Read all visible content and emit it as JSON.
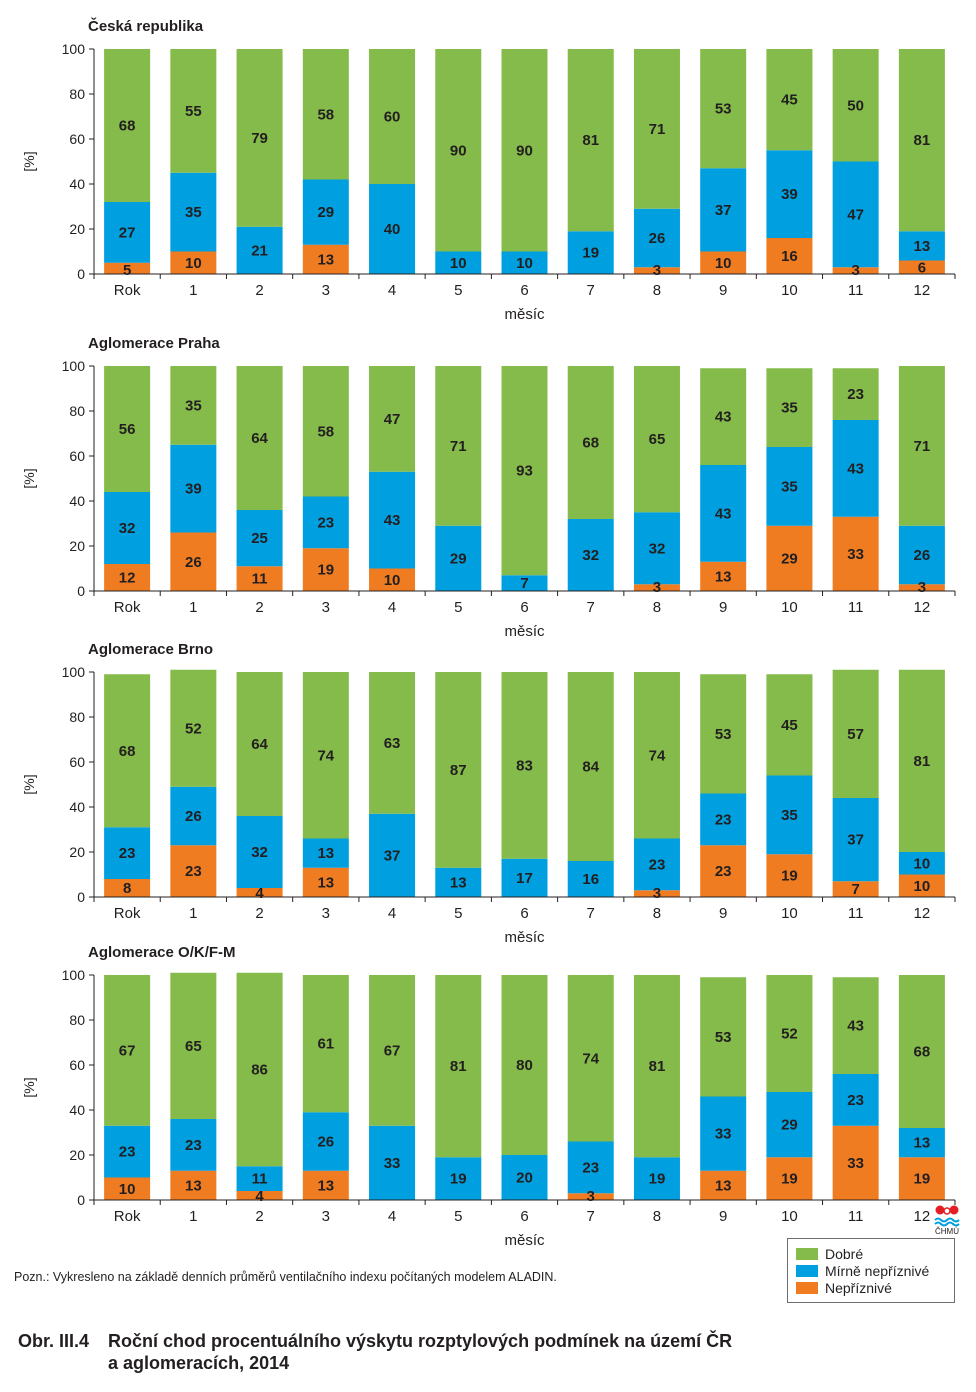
{
  "legend": {
    "items": [
      {
        "label": "Dobré",
        "color": "#84bb4a"
      },
      {
        "label": "Mírně nepříznivé",
        "color": "#009fdf"
      },
      {
        "label": "Nepříznivé",
        "color": "#f07c22"
      }
    ]
  },
  "note": "Pozn.: Vykresleno na základě denních průměrů ventilačního indexu počítaných modelem ALADIN.",
  "caption": {
    "number": "Obr. III.4",
    "line1": "Roční chod procentuálního výskytu rozptylových podmínek na území ČR",
    "line2": "a aglomeracích, 2014"
  },
  "logo": {
    "text": "ČHMÚ",
    "icon": "chmu-logo-icon"
  },
  "chart_data": [
    {
      "type": "bar",
      "title": "Česká republika",
      "ylabel": "[%]",
      "xlabel": "měsíc",
      "ylim": [
        0,
        100
      ],
      "yticks": [
        0,
        20,
        40,
        60,
        80,
        100
      ],
      "grid": false,
      "categories": [
        "Rok",
        "1",
        "2",
        "3",
        "4",
        "5",
        "6",
        "7",
        "8",
        "9",
        "10",
        "11",
        "12"
      ],
      "series": [
        {
          "name": "Nepříznivé",
          "values": [
            5,
            10,
            0,
            13,
            0,
            0,
            0,
            0,
            3,
            10,
            16,
            3,
            6
          ]
        },
        {
          "name": "Mírně nepříznivé",
          "values": [
            27,
            35,
            21,
            29,
            40,
            10,
            10,
            19,
            26,
            37,
            39,
            47,
            13
          ]
        },
        {
          "name": "Dobré",
          "values": [
            68,
            55,
            79,
            58,
            60,
            90,
            90,
            81,
            71,
            53,
            45,
            50,
            81
          ]
        }
      ]
    },
    {
      "type": "bar",
      "title": "Aglomerace Praha",
      "ylabel": "[%]",
      "xlabel": "měsíc",
      "ylim": [
        0,
        100
      ],
      "yticks": [
        0,
        20,
        40,
        60,
        80,
        100
      ],
      "grid": false,
      "categories": [
        "Rok",
        "1",
        "2",
        "3",
        "4",
        "5",
        "6",
        "7",
        "8",
        "9",
        "10",
        "11",
        "12"
      ],
      "series": [
        {
          "name": "Nepříznivé",
          "values": [
            12,
            26,
            11,
            19,
            10,
            0,
            0,
            0,
            3,
            13,
            29,
            33,
            3
          ]
        },
        {
          "name": "Mírně nepříznivé",
          "values": [
            32,
            39,
            25,
            23,
            43,
            29,
            7,
            32,
            32,
            43,
            35,
            43,
            26
          ]
        },
        {
          "name": "Dobré",
          "values": [
            56,
            35,
            64,
            58,
            47,
            71,
            93,
            68,
            65,
            43,
            35,
            23,
            71
          ]
        }
      ]
    },
    {
      "type": "bar",
      "title": "Aglomerace Brno",
      "ylabel": "[%]",
      "xlabel": "měsíc",
      "ylim": [
        0,
        100
      ],
      "yticks": [
        0,
        20,
        40,
        60,
        80,
        100
      ],
      "grid": false,
      "categories": [
        "Rok",
        "1",
        "2",
        "3",
        "4",
        "5",
        "6",
        "7",
        "8",
        "9",
        "10",
        "11",
        "12"
      ],
      "series": [
        {
          "name": "Nepříznivé",
          "values": [
            8,
            23,
            4,
            13,
            0,
            0,
            0,
            0,
            3,
            23,
            19,
            7,
            10
          ]
        },
        {
          "name": "Mírně nepříznivé",
          "values": [
            23,
            26,
            32,
            13,
            37,
            13,
            17,
            16,
            23,
            23,
            35,
            37,
            10
          ]
        },
        {
          "name": "Dobré",
          "values": [
            68,
            52,
            64,
            74,
            63,
            87,
            83,
            84,
            74,
            53,
            45,
            57,
            81
          ]
        }
      ]
    },
    {
      "type": "bar",
      "title": "Aglomerace O/K/F-M",
      "ylabel": "[%]",
      "xlabel": "měsíc",
      "ylim": [
        0,
        100
      ],
      "yticks": [
        0,
        20,
        40,
        60,
        80,
        100
      ],
      "grid": false,
      "categories": [
        "Rok",
        "1",
        "2",
        "3",
        "4",
        "5",
        "6",
        "7",
        "8",
        "9",
        "10",
        "11",
        "12"
      ],
      "series": [
        {
          "name": "Nepříznivé",
          "values": [
            10,
            13,
            4,
            13,
            0,
            0,
            0,
            3,
            0,
            13,
            19,
            33,
            19
          ]
        },
        {
          "name": "Mírně nepříznivé",
          "values": [
            23,
            23,
            11,
            26,
            33,
            19,
            20,
            23,
            19,
            33,
            29,
            23,
            13
          ]
        },
        {
          "name": "Dobré",
          "values": [
            67,
            65,
            86,
            61,
            67,
            81,
            80,
            74,
            81,
            53,
            52,
            43,
            68
          ]
        }
      ]
    }
  ]
}
